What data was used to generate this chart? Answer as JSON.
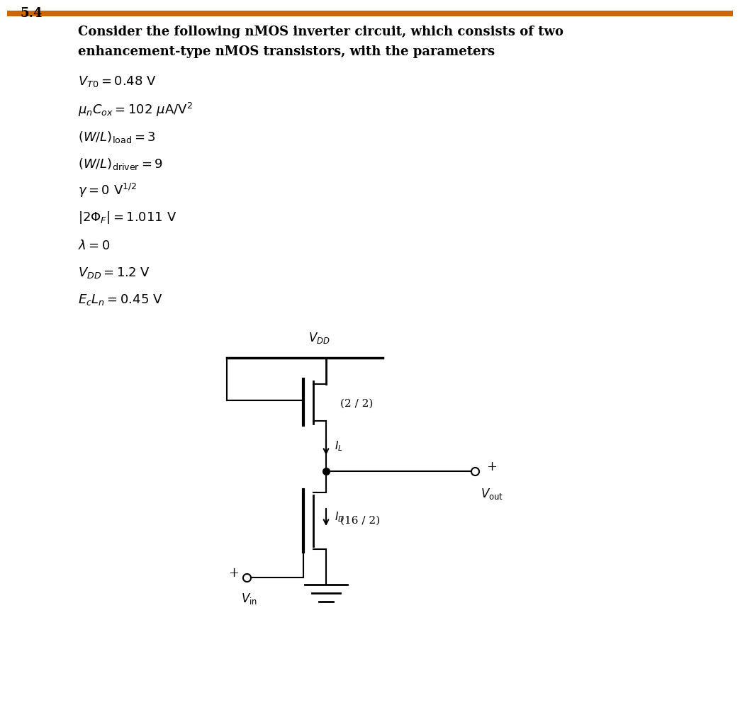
{
  "bg_color": "#ffffff",
  "text_color": "#000000",
  "header_bar_color": "#cc6600",
  "line_color": "#000000",
  "lw": 1.5,
  "title_number": "5.4",
  "title_line1": "Consider the following nMOS inverter circuit, which consists of two",
  "title_line2": "enhancement-type nMOS transistors, with the parameters",
  "param_lines": [
    "$V_{T0} = 0.48\\ \\mathrm{V}$",
    "$\\mu_n C_{ox} = 102\\ \\mu\\mathrm{A/V}^2$",
    "$(W/L)_{\\mathrm{load}} = 3$",
    "$(W/L)_{\\mathrm{driver}} = 9$",
    "$\\gamma = 0\\ \\mathrm{V}^{1/2}$",
    "$|2\\Phi_F| = 1.011\\ \\mathrm{V}$",
    "$\\lambda = 0$",
    "$V_{DD} = 1.2\\ \\mathrm{V}$",
    "$E_c L_n = 0.45\\ \\mathrm{V}$"
  ]
}
